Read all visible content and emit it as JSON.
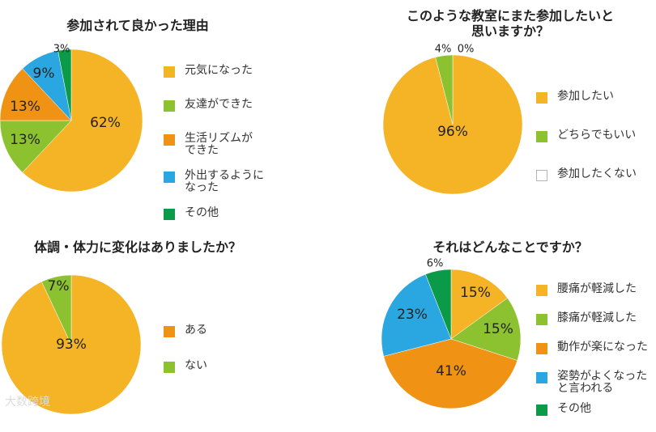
{
  "chart_data": [
    {
      "type": "pie",
      "title": "参加されて良かった理由",
      "slices": [
        {
          "label": "元気になった",
          "value": 62,
          "value_label": "62%",
          "color": "#f5b326"
        },
        {
          "label": "友達ができた",
          "value": 13,
          "value_label": "13%",
          "color": "#8cc22f"
        },
        {
          "label": "生活リズムができた",
          "label_lines": [
            "生活リズムが",
            "できた"
          ],
          "value": 13,
          "value_label": "13%",
          "color": "#f09315"
        },
        {
          "label": "外出するようになった",
          "label_lines": [
            "外出するように",
            "なった"
          ],
          "value": 9,
          "value_label": "9%",
          "color": "#2aa7e0"
        },
        {
          "label": "その他",
          "value": 3,
          "value_label": "3%",
          "color": "#0a9a48"
        }
      ],
      "legend_position": "right"
    },
    {
      "type": "pie",
      "title_lines": [
        "このような教室にまた参加したいと",
        "思いますか？"
      ],
      "slices": [
        {
          "label": "参加したい",
          "value": 96,
          "value_label": "96%",
          "color": "#f5b326"
        },
        {
          "label": "どちらでもいい",
          "value": 4,
          "value_label": "4%",
          "color": "#8cc22f"
        },
        {
          "label": "参加したくない",
          "value": 0,
          "value_label": "0%",
          "color": "#ffffff"
        }
      ],
      "legend_position": "right"
    },
    {
      "type": "pie",
      "title": "体調・体力に変化はありましたか？",
      "slices": [
        {
          "label": "ある",
          "value": 93,
          "value_label": "93%",
          "color": "#f5b326"
        },
        {
          "label": "ない",
          "value": 7,
          "value_label": "7%",
          "color": "#8cc22f"
        }
      ],
      "legend_position": "right",
      "legend_colors": [
        "#f09315",
        "#8cc22f"
      ]
    },
    {
      "type": "pie",
      "title": "それはどんなことですか？",
      "slices": [
        {
          "label": "腰痛が軽減した",
          "value": 15,
          "value_label": "15%",
          "color": "#f5b326"
        },
        {
          "label": "膝痛が軽減した",
          "value": 15,
          "value_label": "15%",
          "color": "#8cc22f"
        },
        {
          "label": "動作が楽になった",
          "value": 41,
          "value_label": "41%",
          "color": "#f09315"
        },
        {
          "label": "姿勢がよくなったと言われる",
          "label_lines": [
            "姿勢がよくなった",
            "と言われる"
          ],
          "value": 23,
          "value_label": "23%",
          "color": "#2aa7e0"
        },
        {
          "label": "その他",
          "value": 6,
          "value_label": "6%",
          "color": "#0a9a48"
        }
      ],
      "legend_position": "right"
    }
  ],
  "watermark": "大数跨境"
}
